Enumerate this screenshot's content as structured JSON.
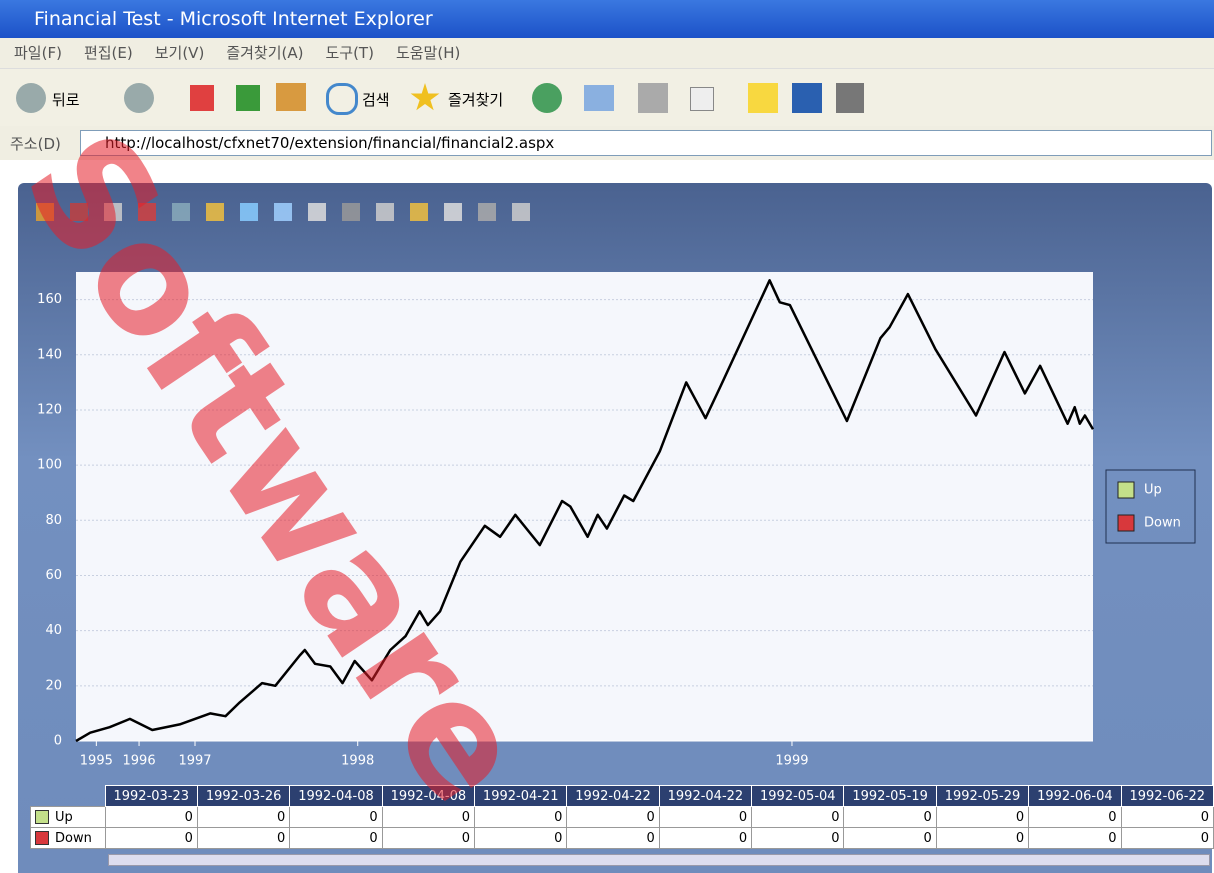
{
  "window": {
    "title": "Financial Test - Microsoft Internet Explorer"
  },
  "menu": [
    "파일(F)",
    "편집(E)",
    "보기(V)",
    "즐겨찾기(A)",
    "도구(T)",
    "도움말(H)"
  ],
  "toolbar": {
    "back": "뒤로",
    "search": "검색",
    "favorites": "즐겨찾기"
  },
  "address": {
    "label": "주소(D)",
    "url": "http://localhost/cfxnet70/extension/financial/financial2.aspx"
  },
  "watermark": "Software",
  "chart_data": {
    "type": "line",
    "x": [
      0,
      1.4,
      3.3,
      5.3,
      7.5,
      10.2,
      13.2,
      14.7,
      16.1,
      18.3,
      19.6,
      22.0,
      22.5,
      23.5,
      25.0,
      26.2,
      27.4,
      29.1,
      30.9,
      32.4,
      33.8,
      34.6,
      35.8,
      37.8,
      40.2,
      41.7,
      43.2,
      45.6,
      47.8,
      48.6,
      50.3,
      51.3,
      52.2,
      53.9,
      54.8,
      57.4,
      60.0,
      61.9,
      63.3,
      68.2,
      69.2,
      70.2,
      75.8,
      79.1,
      80.0,
      81.8,
      84.5,
      87.0,
      88.5,
      91.3,
      93.3,
      94.8,
      97.5,
      98.2,
      98.7,
      99.2,
      100
    ],
    "values": [
      0,
      3,
      5,
      8,
      4,
      6,
      10,
      9,
      14,
      21,
      20,
      31,
      33,
      28,
      27,
      21,
      29,
      22,
      33,
      38,
      47,
      42,
      47,
      65,
      78,
      74,
      82,
      71,
      87,
      85,
      74,
      82,
      77,
      89,
      87,
      105,
      130,
      117,
      128,
      167,
      159,
      158,
      116,
      146,
      150,
      162,
      142,
      127,
      118,
      141,
      126,
      136,
      115,
      121,
      115,
      118,
      113
    ],
    "color": "#000000",
    "xlim": [
      0,
      100
    ],
    "xticks": [
      {
        "value": 2.0,
        "label": "1995"
      },
      {
        "value": 6.2,
        "label": "1996"
      },
      {
        "value": 11.7,
        "label": "1997"
      },
      {
        "value": 27.7,
        "label": "1998"
      },
      {
        "value": 70.4,
        "label": "1999"
      }
    ],
    "ylim": [
      0,
      170
    ],
    "yticks": [
      0,
      20,
      40,
      60,
      80,
      100,
      120,
      140,
      160
    ],
    "grid": true,
    "legend": [
      {
        "name": "Up",
        "color": "#c4e08a"
      },
      {
        "name": "Down",
        "color": "#d8383c"
      }
    ]
  },
  "table": {
    "columns": [
      "1992-03-23",
      "1992-03-26",
      "1992-04-08",
      "1992-04-08",
      "1992-04-21",
      "1992-04-22",
      "1992-04-22",
      "1992-05-04",
      "1992-05-19",
      "1992-05-29",
      "1992-06-04",
      "1992-06-22"
    ],
    "rows": [
      {
        "name": "Up",
        "values": [
          0,
          0,
          0,
          0,
          0,
          0,
          0,
          0,
          0,
          0,
          0,
          0
        ]
      },
      {
        "name": "Down",
        "values": [
          0,
          0,
          0,
          0,
          0,
          0,
          0,
          0,
          0,
          0,
          0,
          0
        ]
      }
    ]
  }
}
